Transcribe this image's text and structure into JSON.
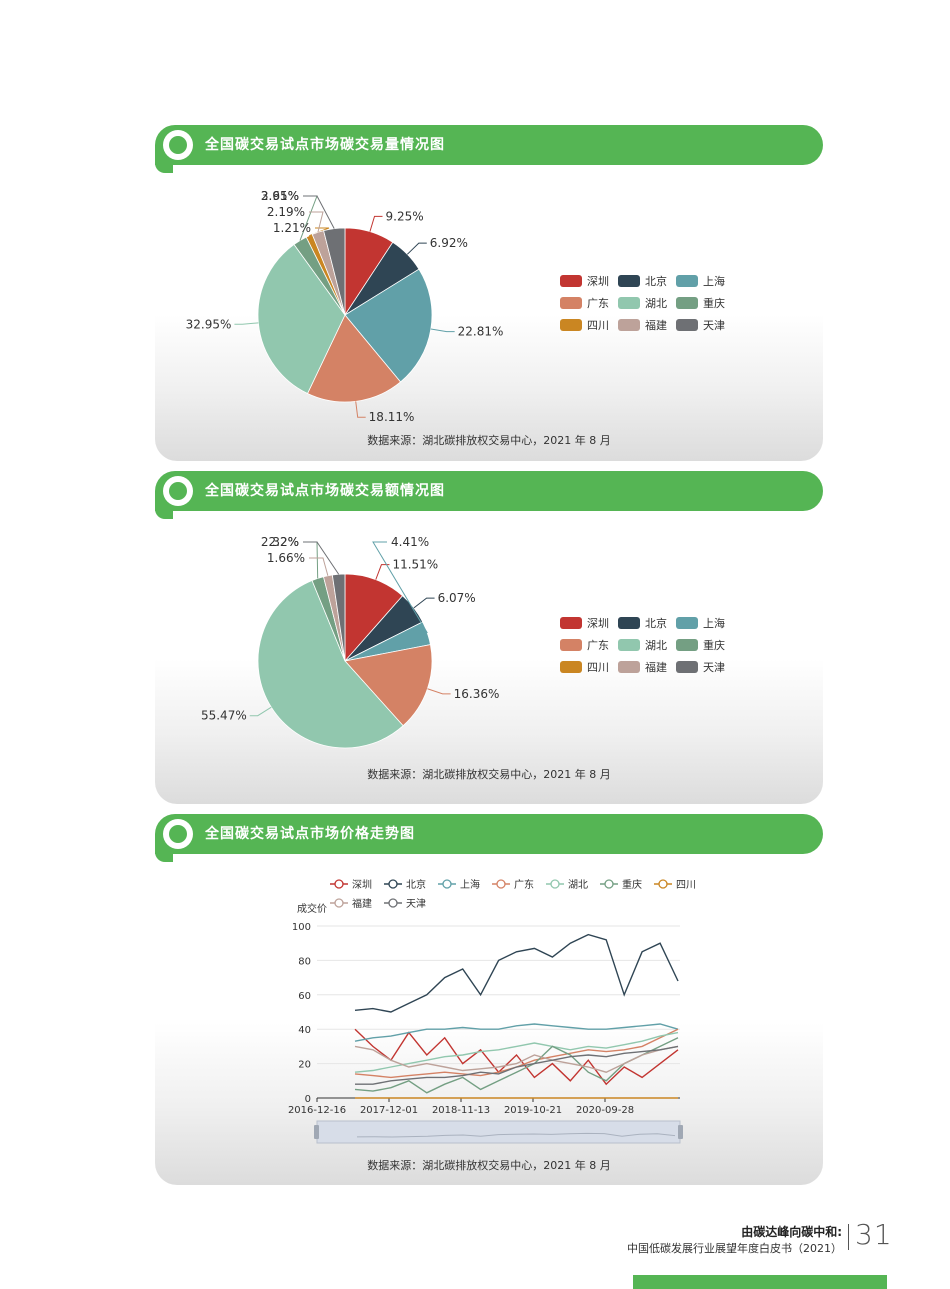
{
  "sections": [
    {
      "title": "全国碳交易试点市场碳交易量情况图",
      "source": "数据来源：湖北碳排放权交易中心，2021 年 8 月"
    },
    {
      "title": "全国碳交易试点市场碳交易额情况图",
      "source": "数据来源：湖北碳排放权交易中心，2021 年 8 月"
    },
    {
      "title": "全国碳交易试点市场价格走势图",
      "source": "数据来源：湖北碳排放权交易中心，2021 年 8 月"
    }
  ],
  "colors": {
    "深圳": "#c23531",
    "北京": "#2f4554",
    "上海": "#61a0a8",
    "广东": "#d48265",
    "湖北": "#91c7ae",
    "重庆": "#749f83",
    "四川": "#ca8622",
    "福建": "#bda29a",
    "天津": "#6e7074"
  },
  "chart_data": [
    {
      "type": "pie",
      "labels": [
        "深圳",
        "北京",
        "上海",
        "广东",
        "湖北",
        "重庆",
        "四川",
        "福建",
        "天津"
      ],
      "values": [
        9.25,
        6.92,
        22.81,
        18.11,
        32.95,
        2.61,
        1.21,
        2.19,
        3.95
      ],
      "value_labels": [
        "9.25%",
        "6.92%",
        "22.81%",
        "18.11%",
        "32.95%",
        "2.61%",
        "1.21%",
        "2.19%",
        "3.95%"
      ],
      "legend": "right"
    },
    {
      "type": "pie",
      "labels": [
        "深圳",
        "北京",
        "上海",
        "广东",
        "湖北",
        "重庆",
        "四川",
        "福建",
        "天津"
      ],
      "values": [
        11.51,
        6.07,
        4.41,
        16.36,
        55.47,
        2.2,
        0,
        1.66,
        2.32
      ],
      "value_labels": [
        "11.51%",
        "6.07%",
        "4.41%",
        "16.36%",
        "55.47%",
        "2.2%",
        "",
        "1.66%",
        "2.32%"
      ],
      "legend": "right"
    },
    {
      "type": "line",
      "ylabel": "成交价",
      "ylim": [
        0,
        100
      ],
      "yticks": [
        0,
        20,
        40,
        60,
        80,
        100
      ],
      "xticks": [
        "2016-12-16",
        "2017-12-01",
        "2018-11-13",
        "2019-10-21",
        "2020-09-28"
      ],
      "legend": "top",
      "series": [
        {
          "name": "深圳",
          "values": [
            40,
            30,
            22,
            38,
            25,
            35,
            20,
            28,
            15,
            25,
            12,
            20,
            10,
            22,
            8,
            18,
            12,
            20,
            28
          ]
        },
        {
          "name": "北京",
          "values": [
            51,
            52,
            50,
            55,
            60,
            70,
            75,
            60,
            80,
            85,
            87,
            82,
            90,
            95,
            92,
            60,
            85,
            90,
            68
          ]
        },
        {
          "name": "上海",
          "values": [
            33,
            35,
            36,
            38,
            40,
            40,
            41,
            40,
            40,
            42,
            43,
            42,
            41,
            40,
            40,
            41,
            42,
            43,
            40
          ]
        },
        {
          "name": "广东",
          "values": [
            14,
            13,
            12,
            13,
            14,
            15,
            14,
            13,
            15,
            18,
            22,
            24,
            26,
            28,
            27,
            28,
            30,
            35,
            40
          ]
        },
        {
          "name": "湖北",
          "values": [
            15,
            16,
            18,
            20,
            22,
            24,
            25,
            27,
            28,
            30,
            32,
            30,
            28,
            30,
            29,
            31,
            33,
            36,
            38
          ]
        },
        {
          "name": "重庆",
          "values": [
            5,
            4,
            6,
            10,
            3,
            8,
            12,
            5,
            10,
            15,
            20,
            30,
            25,
            15,
            10,
            20,
            25,
            30,
            35
          ]
        },
        {
          "name": "四川",
          "values": [
            0,
            0,
            0,
            0,
            0,
            0,
            0,
            0,
            0,
            0,
            0,
            0,
            0,
            0,
            0,
            0,
            0,
            0,
            0
          ]
        },
        {
          "name": "福建",
          "values": [
            30,
            28,
            22,
            18,
            20,
            18,
            16,
            17,
            18,
            20,
            25,
            22,
            20,
            18,
            15,
            20,
            25,
            28,
            30
          ]
        },
        {
          "name": "天津",
          "values": [
            8,
            8,
            10,
            11,
            12,
            12,
            13,
            15,
            14,
            18,
            20,
            22,
            24,
            25,
            24,
            26,
            27,
            28,
            30
          ]
        }
      ]
    }
  ],
  "footer": {
    "line1": "由碳达峰向碳中和:",
    "line2": "中国低碳发展行业展望年度白皮书（2021）",
    "page": "31"
  }
}
